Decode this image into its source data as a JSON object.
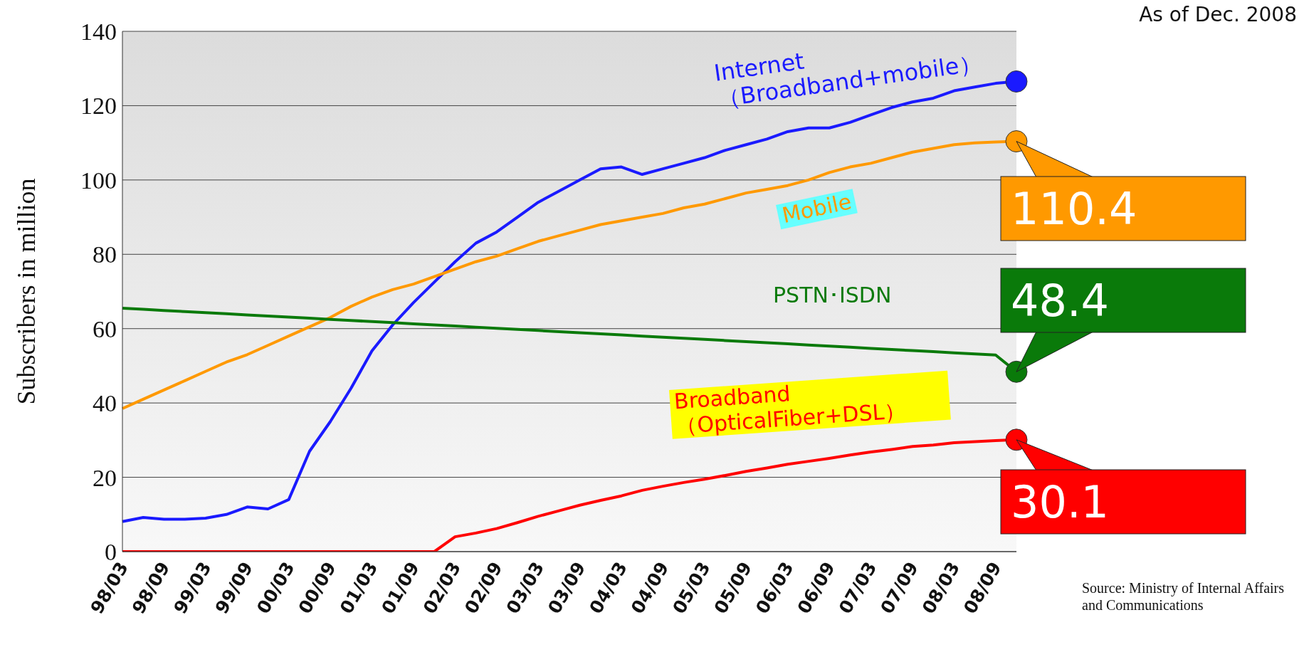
{
  "chart_data": {
    "type": "line",
    "ylabel": "Subscribers in million",
    "categories": [
      "98/03",
      null,
      "98/09",
      null,
      "99/03",
      null,
      "99/09",
      null,
      "00/03",
      null,
      "00/09",
      null,
      "01/03",
      null,
      "01/09",
      null,
      "02/03",
      null,
      "02/09",
      null,
      "03/03",
      null,
      "03/09",
      null,
      "04/03",
      null,
      "04/09",
      null,
      "05/03",
      null,
      "05/09",
      null,
      "06/03",
      null,
      "06/09",
      null,
      "07/03",
      null,
      "07/09",
      null,
      "08/03",
      null,
      "08/09",
      null
    ],
    "series": [
      {
        "name": "Internet（Broadband+mobile）",
        "color": "#1a1aff",
        "values": [
          8.1,
          9.2,
          8.7,
          8.7,
          9.0,
          10.0,
          12.0,
          11.5,
          14,
          27,
          35,
          44,
          54,
          61,
          67,
          72.5,
          78,
          83,
          86,
          90,
          94,
          97,
          100,
          103,
          103.5,
          101.5,
          103,
          104.5,
          106,
          108,
          109.5,
          111,
          113,
          114,
          114,
          115.5,
          117.5,
          119.5,
          121,
          122,
          124,
          125,
          126,
          126.5
        ]
      },
      {
        "name": "Mobile",
        "color": "#ff9900",
        "values": [
          38.5,
          41,
          43.5,
          46,
          48.5,
          51,
          53,
          55.5,
          58,
          60.5,
          63,
          66,
          68.5,
          70.5,
          72,
          74,
          76,
          78,
          79.5,
          81.5,
          83.5,
          85,
          86.5,
          88,
          89,
          90,
          91,
          92.5,
          93.5,
          95,
          96.5,
          97.5,
          98.5,
          100,
          102,
          103.5,
          104.5,
          106,
          107.5,
          108.5,
          109.5,
          110,
          110.2,
          110.4
        ],
        "value_labels": [
          null,
          null,
          null,
          null,
          null,
          null,
          null,
          null,
          null,
          null,
          null,
          null,
          null,
          null,
          null,
          null,
          null,
          null,
          null,
          null,
          null,
          null,
          null,
          null,
          null,
          null,
          null,
          null,
          null,
          null,
          null,
          null,
          null,
          null,
          null,
          null,
          null,
          null,
          null,
          null,
          null,
          null,
          null,
          "110.4"
        ]
      },
      {
        "name": "PSTN･ISDN",
        "color": "#0a7a0a",
        "values": [
          65.5,
          65.2,
          64.9,
          64.6,
          64.3,
          64.0,
          63.7,
          63.4,
          63.1,
          62.8,
          62.5,
          62.2,
          61.9,
          61.6,
          61.3,
          61.0,
          60.7,
          60.4,
          60.1,
          59.8,
          59.5,
          59.2,
          58.9,
          58.6,
          58.3,
          58.0,
          57.7,
          57.4,
          57.1,
          56.8,
          56.5,
          56.2,
          55.9,
          55.6,
          55.3,
          55.0,
          54.7,
          54.4,
          54.1,
          53.8,
          53.5,
          53.2,
          52.9,
          48.4
        ],
        "value_labels": [
          null,
          null,
          null,
          null,
          null,
          null,
          null,
          null,
          null,
          null,
          null,
          null,
          null,
          null,
          null,
          null,
          null,
          null,
          null,
          null,
          null,
          null,
          null,
          null,
          null,
          null,
          null,
          null,
          null,
          null,
          null,
          null,
          null,
          null,
          null,
          null,
          null,
          null,
          null,
          null,
          null,
          null,
          null,
          "48.4"
        ]
      },
      {
        "name": "Broadband（OpticalFiber+DSL）",
        "color": "#ff0000",
        "values": [
          0,
          0,
          0,
          0,
          0,
          0,
          0,
          0,
          0,
          0,
          0,
          0,
          0,
          0,
          0,
          0,
          4,
          5,
          6.2,
          7.8,
          9.5,
          11,
          12.5,
          13.8,
          15,
          16.5,
          17.6,
          18.6,
          19.5,
          20.5,
          21.6,
          22.5,
          23.5,
          24.3,
          25.1,
          26,
          26.8,
          27.5,
          28.3,
          28.7,
          29.3,
          29.6,
          29.9,
          30.1
        ],
        "value_labels": [
          null,
          null,
          null,
          null,
          null,
          null,
          null,
          null,
          null,
          null,
          null,
          null,
          null,
          null,
          null,
          null,
          null,
          null,
          null,
          null,
          null,
          null,
          null,
          null,
          null,
          null,
          null,
          null,
          null,
          null,
          null,
          null,
          null,
          null,
          null,
          null,
          null,
          null,
          null,
          null,
          null,
          null,
          null,
          "30.1"
        ]
      }
    ],
    "ylim": [
      0,
      140
    ],
    "yticks": [
      0,
      20,
      40,
      60,
      80,
      100,
      120,
      140
    ],
    "grid": "y",
    "legend": false,
    "annotations": [
      "As of Dec. 2008",
      "Source: Ministry of Internal Affairs and Communications"
    ]
  }
}
